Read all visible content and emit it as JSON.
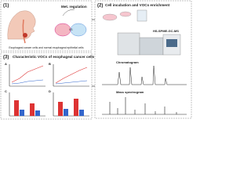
{
  "panels": [
    {
      "number": "(1)",
      "title": "Met. regulation",
      "caption": "Esophageal cancer cells and normal esophageal epithelial cells"
    },
    {
      "number": "(2)",
      "title": "Cell incubation and VOCs enrichment",
      "instrument": "HS-SPME-GC-MS"
    },
    {
      "number": "(3)",
      "title": "Characteristic VOCs of esophageal cancer cells",
      "charts": [
        "A",
        "B",
        "C",
        "D"
      ]
    }
  ],
  "spectra": {
    "chromatogram": "Chromatogram",
    "mass": "Mass spectrogram"
  }
}
